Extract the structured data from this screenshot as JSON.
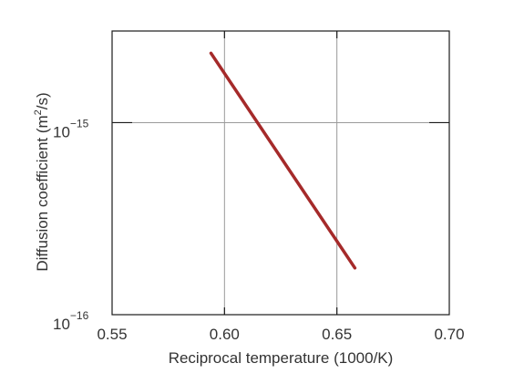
{
  "chart_data": {
    "type": "line",
    "xlabel": "Reciprocal temperature (1000/K)",
    "ylabel": {
      "prefix": "Diffusion coefficient (m",
      "superscript": "2",
      "suffix": "/s)"
    },
    "xlim": [
      0.55,
      0.7
    ],
    "ylim": [
      1e-16,
      3e-15
    ],
    "yscale": "log",
    "grid": true,
    "x_ticks": [
      {
        "value": 0.55,
        "label": "0.55"
      },
      {
        "value": 0.6,
        "label": "0.60"
      },
      {
        "value": 0.65,
        "label": "0.65"
      },
      {
        "value": 0.7,
        "label": "0.70"
      }
    ],
    "y_ticks": [
      {
        "value": 1e-16,
        "base": "10",
        "exponent": "−16"
      },
      {
        "value": 1e-15,
        "base": "10",
        "exponent": "−15"
      }
    ],
    "series": [
      {
        "color": "#a52a2a",
        "x": [
          0.594,
          0.658
        ],
        "y": [
          2.3e-15,
          1.75e-16
        ]
      }
    ]
  }
}
